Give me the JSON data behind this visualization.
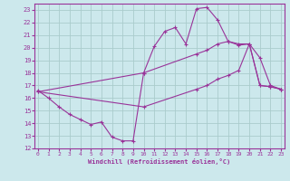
{
  "xlabel": "Windchill (Refroidissement éolien,°C)",
  "bg_color": "#cce8ec",
  "grid_color": "#aacccc",
  "line_color": "#993399",
  "ylim": [
    12,
    23.5
  ],
  "xlim": [
    -0.3,
    23.3
  ],
  "yticks": [
    12,
    13,
    14,
    15,
    16,
    17,
    18,
    19,
    20,
    21,
    22,
    23
  ],
  "xticks": [
    0,
    1,
    2,
    3,
    4,
    5,
    6,
    7,
    8,
    9,
    10,
    11,
    12,
    13,
    14,
    15,
    16,
    17,
    18,
    19,
    20,
    21,
    22,
    23
  ],
  "series1_x": [
    0,
    1,
    2,
    3,
    4,
    5,
    6,
    7,
    8,
    9,
    10,
    11,
    12,
    13,
    14,
    15,
    16,
    17,
    18,
    19,
    20,
    21,
    22,
    23
  ],
  "series1_y": [
    16.6,
    16.0,
    15.3,
    14.7,
    14.3,
    13.9,
    14.1,
    12.9,
    12.6,
    12.6,
    18.0,
    20.1,
    21.3,
    21.6,
    20.3,
    23.1,
    23.2,
    22.2,
    20.5,
    20.2,
    20.3,
    19.2,
    17.0,
    16.7
  ],
  "series2_x": [
    0,
    10,
    15,
    16,
    17,
    18,
    19,
    20,
    21,
    22,
    23
  ],
  "series2_y": [
    16.5,
    18.0,
    19.5,
    19.8,
    20.3,
    20.5,
    20.3,
    20.3,
    17.0,
    16.9,
    16.7
  ],
  "series3_x": [
    0,
    10,
    15,
    16,
    17,
    18,
    19,
    20,
    21,
    22,
    23
  ],
  "series3_y": [
    16.5,
    15.3,
    16.7,
    17.0,
    17.5,
    17.8,
    18.2,
    20.3,
    17.0,
    16.9,
    16.7
  ]
}
